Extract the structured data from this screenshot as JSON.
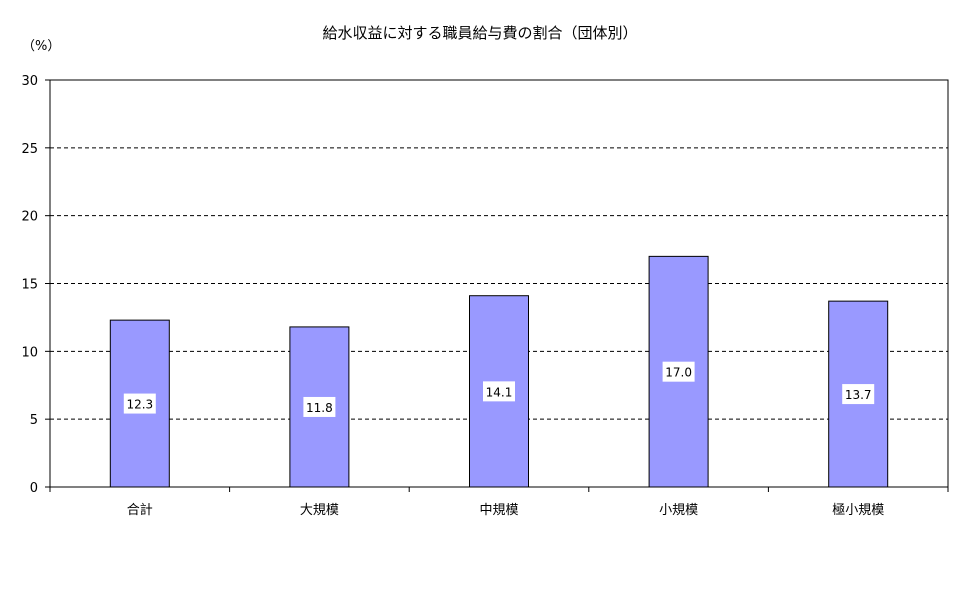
{
  "chart_data": {
    "type": "bar",
    "title": "給水収益に対する職員給与費の割合（団体別）",
    "ylabel": "（%）",
    "xlabel": "",
    "categories": [
      "合計",
      "大規模",
      "中規模",
      "小規模",
      "極小規模"
    ],
    "values": [
      12.3,
      11.8,
      14.1,
      17.0,
      13.7
    ],
    "data_labels": [
      "12.3",
      "11.8",
      "14.1",
      "17.0",
      "13.7"
    ],
    "ylim": [
      0,
      30
    ],
    "yticks": [
      0,
      5,
      10,
      15,
      20,
      25,
      30
    ],
    "grid": true,
    "legend": "none",
    "colors": {
      "bar": "#9999ff",
      "bar_stroke": "#000000",
      "grid": "#000000",
      "label_bg": "#ffffff"
    }
  }
}
